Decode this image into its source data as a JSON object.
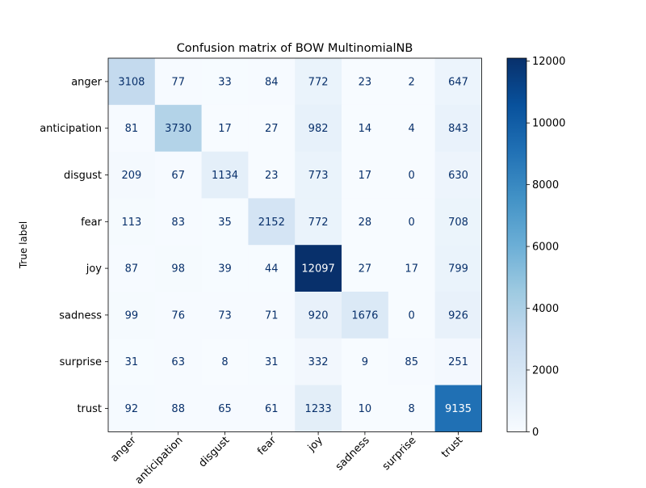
{
  "chart_data": {
    "type": "heatmap",
    "title": "Confusion matrix of BOW MultinomialNB",
    "ylabel": "True label",
    "xlabel": "",
    "row_labels": [
      "anger",
      "anticipation",
      "disgust",
      "fear",
      "joy",
      "sadness",
      "surprise",
      "trust"
    ],
    "col_labels": [
      "anger",
      "anticipation",
      "disgust",
      "fear",
      "joy",
      "sadness",
      "surprise",
      "trust"
    ],
    "matrix": [
      [
        3108,
        77,
        33,
        84,
        772,
        23,
        2,
        647
      ],
      [
        81,
        3730,
        17,
        27,
        982,
        14,
        4,
        843
      ],
      [
        209,
        67,
        1134,
        23,
        773,
        17,
        0,
        630
      ],
      [
        113,
        83,
        35,
        2152,
        772,
        28,
        0,
        708
      ],
      [
        87,
        98,
        39,
        44,
        12097,
        27,
        17,
        799
      ],
      [
        99,
        76,
        73,
        71,
        920,
        1676,
        0,
        926
      ],
      [
        31,
        63,
        8,
        31,
        332,
        9,
        85,
        251
      ],
      [
        92,
        88,
        65,
        61,
        1233,
        10,
        8,
        9135
      ]
    ],
    "colormap": "Blues",
    "color_range": [
      0,
      12097
    ],
    "colorbar_ticks": [
      0,
      2000,
      4000,
      6000,
      8000,
      10000,
      12000
    ],
    "grid": false
  }
}
